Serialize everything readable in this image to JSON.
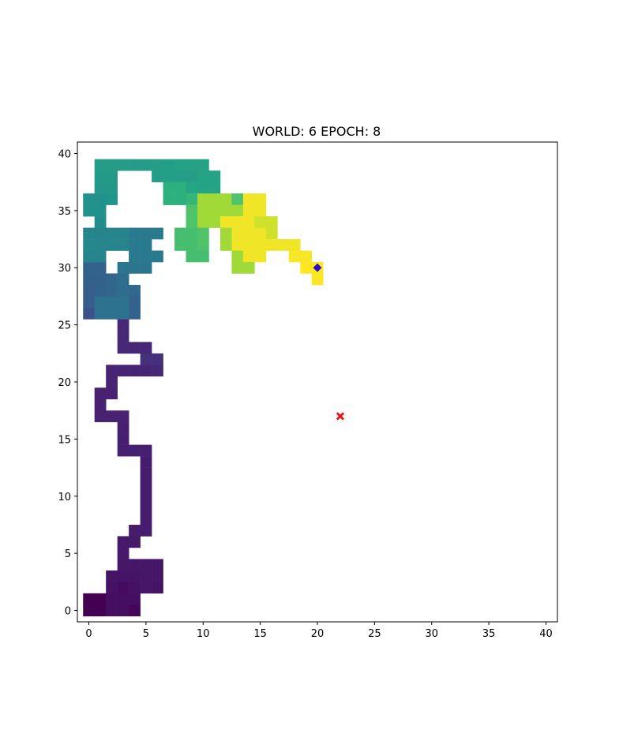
{
  "chart_data": {
    "type": "heatmap",
    "title": "WORLD: 6 EPOCH: 8",
    "xlabel": "",
    "ylabel": "",
    "xlim": [
      -1,
      41
    ],
    "ylim": [
      -1,
      41
    ],
    "x_ticks": [
      0,
      5,
      10,
      15,
      20,
      25,
      30,
      35,
      40
    ],
    "y_ticks": [
      0,
      5,
      10,
      15,
      20,
      25,
      30,
      35,
      40
    ],
    "tick_labels_x": [
      "0",
      "5",
      "10",
      "15",
      "20",
      "25",
      "30",
      "35",
      "40"
    ],
    "tick_labels_y": [
      "0",
      "5",
      "10",
      "15",
      "20",
      "25",
      "30",
      "35",
      "40"
    ],
    "grid": false,
    "colormap": "viridis",
    "value_range": [
      0,
      1
    ],
    "cells": [
      {
        "x": 0,
        "y": 0,
        "v": 0.0
      },
      {
        "x": 1,
        "y": 0,
        "v": 0.0
      },
      {
        "x": 0,
        "y": 1,
        "v": 0.0
      },
      {
        "x": 1,
        "y": 1,
        "v": 0.0
      },
      {
        "x": 2,
        "y": 0,
        "v": 0.05
      },
      {
        "x": 3,
        "y": 0,
        "v": 0.05
      },
      {
        "x": 4,
        "y": 0,
        "v": 0.02
      },
      {
        "x": 2,
        "y": 1,
        "v": 0.05
      },
      {
        "x": 3,
        "y": 1,
        "v": 0.05
      },
      {
        "x": 4,
        "y": 1,
        "v": 0.05
      },
      {
        "x": 2,
        "y": 2,
        "v": 0.06
      },
      {
        "x": 3,
        "y": 2,
        "v": 0.04
      },
      {
        "x": 4,
        "y": 2,
        "v": 0.06
      },
      {
        "x": 5,
        "y": 2,
        "v": 0.08
      },
      {
        "x": 6,
        "y": 2,
        "v": 0.07
      },
      {
        "x": 2,
        "y": 3,
        "v": 0.07
      },
      {
        "x": 3,
        "y": 3,
        "v": 0.07
      },
      {
        "x": 4,
        "y": 3,
        "v": 0.07
      },
      {
        "x": 5,
        "y": 3,
        "v": 0.08
      },
      {
        "x": 6,
        "y": 3,
        "v": 0.08
      },
      {
        "x": 3,
        "y": 4,
        "v": 0.08
      },
      {
        "x": 4,
        "y": 4,
        "v": 0.08
      },
      {
        "x": 5,
        "y": 4,
        "v": 0.08
      },
      {
        "x": 6,
        "y": 4,
        "v": 0.08
      },
      {
        "x": 3,
        "y": 5,
        "v": 0.09
      },
      {
        "x": 3,
        "y": 6,
        "v": 0.09
      },
      {
        "x": 4,
        "y": 6,
        "v": 0.09
      },
      {
        "x": 4,
        "y": 7,
        "v": 0.1
      },
      {
        "x": 5,
        "y": 7,
        "v": 0.1
      },
      {
        "x": 5,
        "y": 8,
        "v": 0.1
      },
      {
        "x": 5,
        "y": 9,
        "v": 0.1
      },
      {
        "x": 5,
        "y": 10,
        "v": 0.1
      },
      {
        "x": 5,
        "y": 11,
        "v": 0.1
      },
      {
        "x": 5,
        "y": 12,
        "v": 0.1
      },
      {
        "x": 5,
        "y": 13,
        "v": 0.1
      },
      {
        "x": 3,
        "y": 14,
        "v": 0.11
      },
      {
        "x": 4,
        "y": 14,
        "v": 0.11
      },
      {
        "x": 5,
        "y": 14,
        "v": 0.11
      },
      {
        "x": 3,
        "y": 15,
        "v": 0.11
      },
      {
        "x": 3,
        "y": 16,
        "v": 0.11
      },
      {
        "x": 1,
        "y": 17,
        "v": 0.12
      },
      {
        "x": 2,
        "y": 17,
        "v": 0.12
      },
      {
        "x": 3,
        "y": 17,
        "v": 0.12
      },
      {
        "x": 1,
        "y": 18,
        "v": 0.12
      },
      {
        "x": 1,
        "y": 19,
        "v": 0.12
      },
      {
        "x": 2,
        "y": 19,
        "v": 0.12
      },
      {
        "x": 2,
        "y": 20,
        "v": 0.13
      },
      {
        "x": 2,
        "y": 21,
        "v": 0.13
      },
      {
        "x": 3,
        "y": 21,
        "v": 0.13
      },
      {
        "x": 4,
        "y": 21,
        "v": 0.13
      },
      {
        "x": 5,
        "y": 21,
        "v": 0.13
      },
      {
        "x": 6,
        "y": 21,
        "v": 0.14
      },
      {
        "x": 5,
        "y": 22,
        "v": 0.16
      },
      {
        "x": 6,
        "y": 22,
        "v": 0.16
      },
      {
        "x": 3,
        "y": 23,
        "v": 0.14
      },
      {
        "x": 4,
        "y": 23,
        "v": 0.14
      },
      {
        "x": 5,
        "y": 23,
        "v": 0.14
      },
      {
        "x": 3,
        "y": 24,
        "v": 0.14
      },
      {
        "x": 3,
        "y": 25,
        "v": 0.14
      },
      {
        "x": 0,
        "y": 26,
        "v": 0.25
      },
      {
        "x": 1,
        "y": 26,
        "v": 0.38
      },
      {
        "x": 2,
        "y": 26,
        "v": 0.38
      },
      {
        "x": 3,
        "y": 26,
        "v": 0.38
      },
      {
        "x": 4,
        "y": 26,
        "v": 0.32
      },
      {
        "x": 0,
        "y": 27,
        "v": 0.3
      },
      {
        "x": 1,
        "y": 27,
        "v": 0.38
      },
      {
        "x": 2,
        "y": 27,
        "v": 0.38
      },
      {
        "x": 3,
        "y": 27,
        "v": 0.38
      },
      {
        "x": 4,
        "y": 27,
        "v": 0.32
      },
      {
        "x": 0,
        "y": 28,
        "v": 0.3
      },
      {
        "x": 1,
        "y": 28,
        "v": 0.32
      },
      {
        "x": 2,
        "y": 28,
        "v": 0.33
      },
      {
        "x": 3,
        "y": 28,
        "v": 0.36
      },
      {
        "x": 4,
        "y": 28,
        "v": 0.34
      },
      {
        "x": 0,
        "y": 29,
        "v": 0.31
      },
      {
        "x": 1,
        "y": 29,
        "v": 0.31
      },
      {
        "x": 2,
        "y": 29,
        "v": 0.33
      },
      {
        "x": 3,
        "y": 29,
        "v": 0.36
      },
      {
        "x": 0,
        "y": 30,
        "v": 0.32
      },
      {
        "x": 1,
        "y": 30,
        "v": 0.32
      },
      {
        "x": 3,
        "y": 30,
        "v": 0.39
      },
      {
        "x": 4,
        "y": 30,
        "v": 0.39
      },
      {
        "x": 5,
        "y": 30,
        "v": 0.39
      },
      {
        "x": 0,
        "y": 31,
        "v": 0.45
      },
      {
        "x": 1,
        "y": 31,
        "v": 0.45
      },
      {
        "x": 4,
        "y": 31,
        "v": 0.41
      },
      {
        "x": 5,
        "y": 31,
        "v": 0.41
      },
      {
        "x": 6,
        "y": 31,
        "v": 0.41
      },
      {
        "x": 0,
        "y": 32,
        "v": 0.47
      },
      {
        "x": 1,
        "y": 32,
        "v": 0.45
      },
      {
        "x": 2,
        "y": 32,
        "v": 0.45
      },
      {
        "x": 3,
        "y": 32,
        "v": 0.45
      },
      {
        "x": 4,
        "y": 32,
        "v": 0.41
      },
      {
        "x": 5,
        "y": 32,
        "v": 0.41
      },
      {
        "x": 0,
        "y": 33,
        "v": 0.46
      },
      {
        "x": 1,
        "y": 33,
        "v": 0.45
      },
      {
        "x": 2,
        "y": 33,
        "v": 0.45
      },
      {
        "x": 3,
        "y": 33,
        "v": 0.45
      },
      {
        "x": 4,
        "y": 33,
        "v": 0.41
      },
      {
        "x": 5,
        "y": 33,
        "v": 0.41
      },
      {
        "x": 6,
        "y": 33,
        "v": 0.41
      },
      {
        "x": 1,
        "y": 34,
        "v": 0.48
      },
      {
        "x": 0,
        "y": 35,
        "v": 0.5
      },
      {
        "x": 1,
        "y": 35,
        "v": 0.5
      },
      {
        "x": 0,
        "y": 36,
        "v": 0.5
      },
      {
        "x": 1,
        "y": 36,
        "v": 0.5
      },
      {
        "x": 2,
        "y": 36,
        "v": 0.52
      },
      {
        "x": 1,
        "y": 37,
        "v": 0.53
      },
      {
        "x": 2,
        "y": 37,
        "v": 0.53
      },
      {
        "x": 1,
        "y": 38,
        "v": 0.54
      },
      {
        "x": 2,
        "y": 38,
        "v": 0.54
      },
      {
        "x": 6,
        "y": 38,
        "v": 0.56
      },
      {
        "x": 7,
        "y": 38,
        "v": 0.56
      },
      {
        "x": 8,
        "y": 38,
        "v": 0.56
      },
      {
        "x": 9,
        "y": 38,
        "v": 0.56
      },
      {
        "x": 10,
        "y": 38,
        "v": 0.58
      },
      {
        "x": 11,
        "y": 38,
        "v": 0.58
      },
      {
        "x": 1,
        "y": 39,
        "v": 0.55
      },
      {
        "x": 2,
        "y": 39,
        "v": 0.55
      },
      {
        "x": 3,
        "y": 39,
        "v": 0.55
      },
      {
        "x": 4,
        "y": 39,
        "v": 0.55
      },
      {
        "x": 5,
        "y": 39,
        "v": 0.55
      },
      {
        "x": 6,
        "y": 39,
        "v": 0.56
      },
      {
        "x": 7,
        "y": 39,
        "v": 0.56
      },
      {
        "x": 8,
        "y": 39,
        "v": 0.57
      },
      {
        "x": 9,
        "y": 39,
        "v": 0.57
      },
      {
        "x": 10,
        "y": 39,
        "v": 0.57
      },
      {
        "x": 7,
        "y": 37,
        "v": 0.64
      },
      {
        "x": 8,
        "y": 37,
        "v": 0.64
      },
      {
        "x": 9,
        "y": 37,
        "v": 0.6
      },
      {
        "x": 10,
        "y": 37,
        "v": 0.58
      },
      {
        "x": 11,
        "y": 37,
        "v": 0.58
      },
      {
        "x": 7,
        "y": 36,
        "v": 0.64
      },
      {
        "x": 8,
        "y": 36,
        "v": 0.64
      },
      {
        "x": 9,
        "y": 36,
        "v": 0.66
      },
      {
        "x": 10,
        "y": 36,
        "v": 0.86
      },
      {
        "x": 11,
        "y": 36,
        "v": 0.86
      },
      {
        "x": 12,
        "y": 36,
        "v": 0.86
      },
      {
        "x": 13,
        "y": 36,
        "v": 0.72
      },
      {
        "x": 14,
        "y": 36,
        "v": 0.98
      },
      {
        "x": 15,
        "y": 36,
        "v": 0.98
      },
      {
        "x": 9,
        "y": 35,
        "v": 0.72
      },
      {
        "x": 10,
        "y": 35,
        "v": 0.86
      },
      {
        "x": 11,
        "y": 35,
        "v": 0.86
      },
      {
        "x": 12,
        "y": 35,
        "v": 0.86
      },
      {
        "x": 13,
        "y": 35,
        "v": 0.86
      },
      {
        "x": 14,
        "y": 35,
        "v": 0.98
      },
      {
        "x": 15,
        "y": 35,
        "v": 0.98
      },
      {
        "x": 9,
        "y": 34,
        "v": 0.72
      },
      {
        "x": 10,
        "y": 34,
        "v": 0.86
      },
      {
        "x": 11,
        "y": 34,
        "v": 0.86
      },
      {
        "x": 12,
        "y": 34,
        "v": 0.98
      },
      {
        "x": 13,
        "y": 34,
        "v": 0.98
      },
      {
        "x": 14,
        "y": 34,
        "v": 0.98
      },
      {
        "x": 15,
        "y": 34,
        "v": 0.93
      },
      {
        "x": 16,
        "y": 34,
        "v": 0.93
      },
      {
        "x": 8,
        "y": 33,
        "v": 0.7
      },
      {
        "x": 9,
        "y": 33,
        "v": 0.7
      },
      {
        "x": 10,
        "y": 33,
        "v": 0.72
      },
      {
        "x": 12,
        "y": 33,
        "v": 0.86
      },
      {
        "x": 13,
        "y": 33,
        "v": 0.98
      },
      {
        "x": 14,
        "y": 33,
        "v": 0.98
      },
      {
        "x": 15,
        "y": 33,
        "v": 0.98
      },
      {
        "x": 16,
        "y": 33,
        "v": 0.93
      },
      {
        "x": 8,
        "y": 32,
        "v": 0.7
      },
      {
        "x": 9,
        "y": 32,
        "v": 0.7
      },
      {
        "x": 10,
        "y": 32,
        "v": 0.72
      },
      {
        "x": 12,
        "y": 32,
        "v": 0.86
      },
      {
        "x": 13,
        "y": 32,
        "v": 0.98
      },
      {
        "x": 14,
        "y": 32,
        "v": 0.98
      },
      {
        "x": 15,
        "y": 32,
        "v": 0.98
      },
      {
        "x": 16,
        "y": 32,
        "v": 0.98
      },
      {
        "x": 17,
        "y": 32,
        "v": 0.98
      },
      {
        "x": 18,
        "y": 32,
        "v": 0.98
      },
      {
        "x": 9,
        "y": 31,
        "v": 0.7
      },
      {
        "x": 10,
        "y": 31,
        "v": 0.7
      },
      {
        "x": 13,
        "y": 31,
        "v": 0.86
      },
      {
        "x": 14,
        "y": 31,
        "v": 0.98
      },
      {
        "x": 15,
        "y": 31,
        "v": 0.98
      },
      {
        "x": 18,
        "y": 31,
        "v": 0.99
      },
      {
        "x": 19,
        "y": 31,
        "v": 0.99
      },
      {
        "x": 13,
        "y": 30,
        "v": 0.86
      },
      {
        "x": 14,
        "y": 30,
        "v": 0.86
      },
      {
        "x": 19,
        "y": 30,
        "v": 1.0
      },
      {
        "x": 20,
        "y": 30,
        "v": 1.0
      },
      {
        "x": 20,
        "y": 29,
        "v": 1.0
      }
    ],
    "markers": [
      {
        "name": "agent",
        "x": 20,
        "y": 30,
        "shape": "diamond",
        "color": "#2a0fc9"
      },
      {
        "name": "goal",
        "x": 22,
        "y": 17,
        "shape": "x",
        "color": "#ff0000"
      }
    ]
  }
}
